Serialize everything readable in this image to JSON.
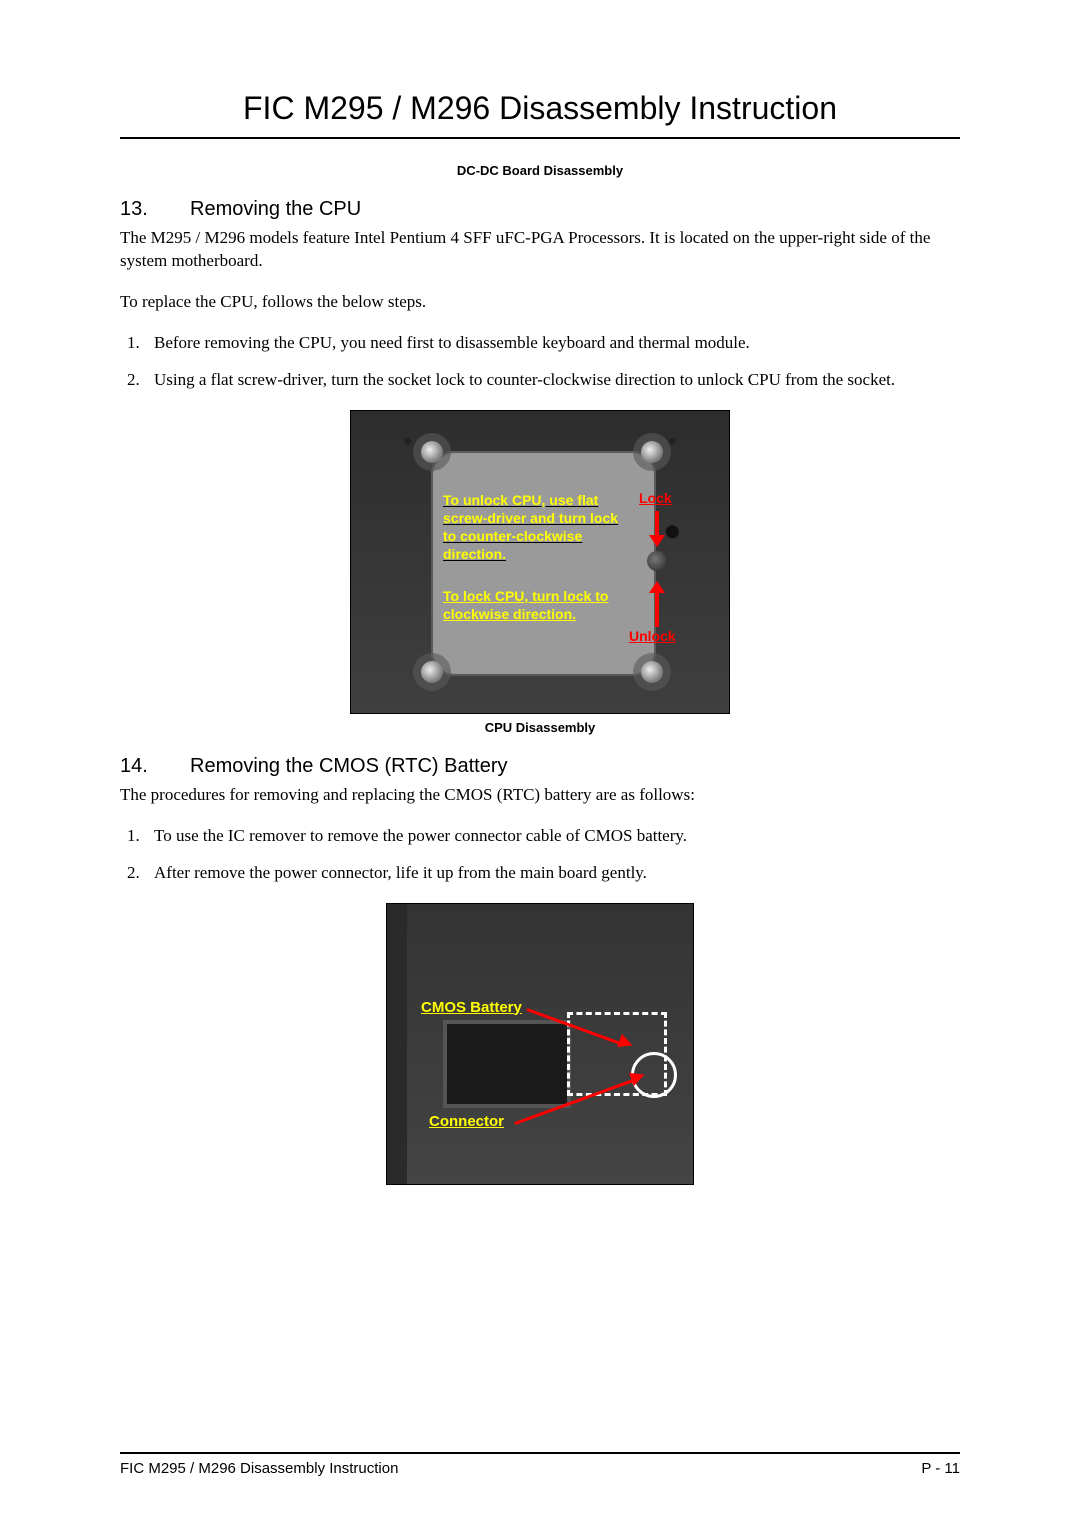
{
  "header": {
    "title": "FIC M295 / M296 Disassembly Instruction"
  },
  "caption_top": "DC-DC Board Disassembly",
  "section13": {
    "number": "13.",
    "title": "Removing the CPU",
    "intro": "The M295 / M296 models feature Intel Pentium 4 SFF uFC-PGA Processors. It is located on the upper-right side of the system motherboard.",
    "lead": "To replace the CPU, follows the below steps.",
    "steps": [
      "Before removing the CPU, you need first to disassemble keyboard and thermal module.",
      "Using a flat screw-driver, turn the socket lock to counter-clockwise direction to unlock CPU from the socket."
    ],
    "figure": {
      "overlay_unlock_text": "To unlock CPU, use flat screw-driver and turn lock to counter-clockwise direction.",
      "overlay_lock_text": "To lock CPU, turn lock to clockwise direction.",
      "label_lock": "Lock",
      "label_unlock": "Unlock",
      "colors": {
        "instruction_text": "#ffff00",
        "label_text": "#ff0000",
        "arrow": "#ff0000",
        "cpu_area": "#9a9a9a",
        "board_bg": "#3a3a3a"
      }
    },
    "caption": "CPU Disassembly"
  },
  "section14": {
    "number": "14.",
    "title": "Removing the CMOS (RTC) Battery",
    "intro": "The procedures for removing and replacing the CMOS (RTC) battery are as follows:",
    "steps": [
      "To use the IC remover to remove the power connector cable of CMOS battery.",
      "After remove the power connector, life it up from the main board gently."
    ],
    "figure": {
      "label_battery": "CMOS Battery",
      "label_connector": "Connector",
      "colors": {
        "label_text": "#ffff00",
        "arrow": "#ff0000",
        "dashed_box": "#ffffff",
        "circle": "#ffffff",
        "board_bg": "#333333"
      }
    }
  },
  "footer": {
    "left": "FIC M295 / M296 Disassembly Instruction",
    "right": "P - 11"
  }
}
